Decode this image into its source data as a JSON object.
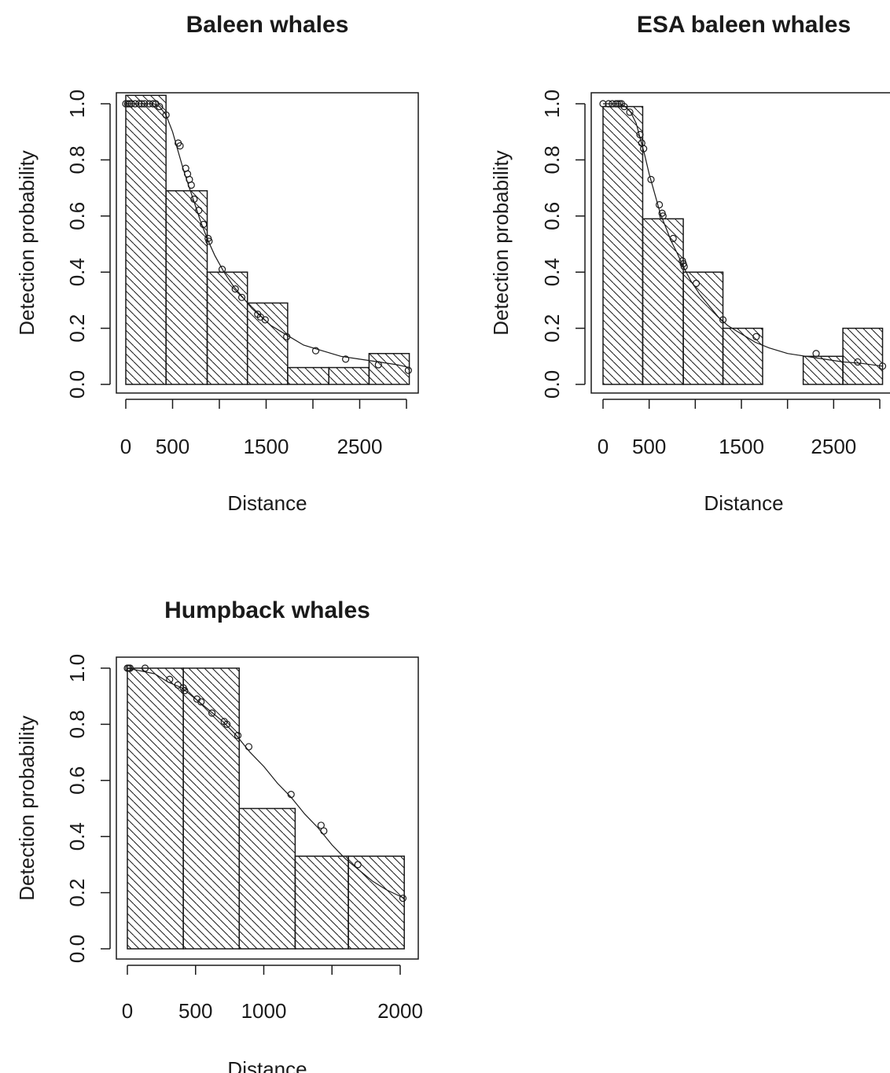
{
  "chart_data": [
    {
      "type": "bar",
      "title": "Baleen whales",
      "xlabel": "Distance",
      "ylabel": "Detection probability",
      "xlim": [
        0,
        3000
      ],
      "ylim": [
        0,
        1.0
      ],
      "x_ticks": [
        0,
        500,
        1000,
        1500,
        2000,
        2500,
        3000
      ],
      "x_tick_labels": [
        "0",
        "500",
        "",
        "1500",
        "",
        "2500",
        ""
      ],
      "y_ticks": [
        0.0,
        0.2,
        0.4,
        0.6,
        0.8,
        1.0
      ],
      "y_tick_labels": [
        "0.0",
        "0.2",
        "0.4",
        "0.6",
        "0.8",
        "1.0"
      ],
      "histogram": [
        {
          "x0": 0,
          "x1": 430,
          "value": 1.03
        },
        {
          "x0": 430,
          "x1": 870,
          "value": 0.69
        },
        {
          "x0": 870,
          "x1": 1300,
          "value": 0.4
        },
        {
          "x0": 1300,
          "x1": 1730,
          "value": 0.29
        },
        {
          "x0": 1730,
          "x1": 2170,
          "value": 0.06
        },
        {
          "x0": 2170,
          "x1": 2600,
          "value": 0.06
        },
        {
          "x0": 2600,
          "x1": 3030,
          "value": 0.11
        }
      ],
      "fitted_curve": {
        "x": [
          0,
          60,
          120,
          180,
          240,
          300,
          360,
          430,
          500,
          560,
          620,
          680,
          740,
          800,
          870,
          950,
          1050,
          1150,
          1250,
          1350,
          1450,
          1550,
          1650,
          1750,
          1900,
          2100,
          2300,
          2500,
          2700,
          2900,
          3030
        ],
        "y": [
          1.0,
          1.0,
          1.0,
          1.0,
          1.0,
          1.0,
          0.99,
          0.96,
          0.9,
          0.83,
          0.76,
          0.7,
          0.64,
          0.58,
          0.52,
          0.46,
          0.4,
          0.35,
          0.31,
          0.27,
          0.24,
          0.21,
          0.19,
          0.17,
          0.14,
          0.12,
          0.1,
          0.09,
          0.08,
          0.07,
          0.06
        ]
      },
      "points": {
        "x": [
          0,
          20,
          40,
          60,
          100,
          140,
          170,
          200,
          250,
          290,
          320,
          360,
          430,
          560,
          580,
          640,
          660,
          680,
          700,
          730,
          780,
          830,
          880,
          890,
          1030,
          1170,
          1240,
          1410,
          1440,
          1490,
          1720,
          2030,
          2350,
          2700,
          3020
        ],
        "y": [
          1.0,
          1.0,
          1.0,
          1.0,
          1.0,
          1.0,
          1.0,
          1.0,
          1.0,
          1.0,
          1.0,
          0.99,
          0.96,
          0.86,
          0.85,
          0.77,
          0.75,
          0.73,
          0.71,
          0.66,
          0.62,
          0.57,
          0.52,
          0.51,
          0.41,
          0.34,
          0.31,
          0.25,
          0.24,
          0.23,
          0.17,
          0.12,
          0.09,
          0.07,
          0.05
        ]
      }
    },
    {
      "type": "bar",
      "title": "ESA baleen whales",
      "xlabel": "Distance",
      "ylabel": "Detection probability",
      "xlim": [
        0,
        3000
      ],
      "ylim": [
        0,
        1.0
      ],
      "x_ticks": [
        0,
        500,
        1000,
        1500,
        2000,
        2500,
        3000
      ],
      "x_tick_labels": [
        "0",
        "500",
        "",
        "1500",
        "",
        "2500",
        ""
      ],
      "y_ticks": [
        0.0,
        0.2,
        0.4,
        0.6,
        0.8,
        1.0
      ],
      "y_tick_labels": [
        "0.0",
        "0.2",
        "0.4",
        "0.6",
        "0.8",
        "1.0"
      ],
      "histogram": [
        {
          "x0": 0,
          "x1": 430,
          "value": 0.99
        },
        {
          "x0": 430,
          "x1": 870,
          "value": 0.59
        },
        {
          "x0": 870,
          "x1": 1300,
          "value": 0.4
        },
        {
          "x0": 1300,
          "x1": 1730,
          "value": 0.2
        },
        {
          "x0": 1730,
          "x1": 2170,
          "value": 0.0
        },
        {
          "x0": 2170,
          "x1": 2600,
          "value": 0.1
        },
        {
          "x0": 2600,
          "x1": 3030,
          "value": 0.2
        }
      ],
      "fitted_curve": {
        "x": [
          0,
          60,
          120,
          180,
          240,
          300,
          360,
          400,
          450,
          500,
          560,
          620,
          680,
          740,
          800,
          870,
          950,
          1050,
          1150,
          1250,
          1350,
          1450,
          1550,
          1650,
          1800,
          2000,
          2200,
          2400,
          2600,
          2800,
          3030
        ],
        "y": [
          1.0,
          1.0,
          1.0,
          1.0,
          0.99,
          0.97,
          0.93,
          0.88,
          0.82,
          0.75,
          0.68,
          0.61,
          0.56,
          0.51,
          0.47,
          0.42,
          0.37,
          0.32,
          0.28,
          0.24,
          0.21,
          0.19,
          0.17,
          0.15,
          0.13,
          0.11,
          0.1,
          0.09,
          0.08,
          0.075,
          0.065
        ]
      },
      "points": {
        "x": [
          0,
          60,
          100,
          140,
          160,
          180,
          200,
          230,
          290,
          400,
          420,
          440,
          520,
          610,
          640,
          650,
          760,
          860,
          870,
          880,
          1010,
          1300,
          1660,
          2310,
          2760,
          3030
        ],
        "y": [
          1.0,
          1.0,
          1.0,
          1.0,
          1.0,
          1.0,
          1.0,
          0.99,
          0.97,
          0.89,
          0.86,
          0.84,
          0.73,
          0.64,
          0.61,
          0.6,
          0.52,
          0.44,
          0.43,
          0.42,
          0.36,
          0.23,
          0.17,
          0.11,
          0.08,
          0.065
        ]
      }
    },
    {
      "type": "bar",
      "title": "Humpback whales",
      "xlabel": "Distance",
      "ylabel": "Detection probability",
      "xlim": [
        0,
        2000
      ],
      "ylim": [
        0,
        1.0
      ],
      "x_ticks": [
        0,
        500,
        1000,
        1500,
        2000
      ],
      "x_tick_labels": [
        "0",
        "500",
        "1000",
        "",
        "2000"
      ],
      "y_ticks": [
        0.0,
        0.2,
        0.4,
        0.6,
        0.8,
        1.0
      ],
      "y_tick_labels": [
        "0.0",
        "0.2",
        "0.4",
        "0.6",
        "0.8",
        "1.0"
      ],
      "histogram": [
        {
          "x0": 0,
          "x1": 410,
          "value": 1.0
        },
        {
          "x0": 410,
          "x1": 820,
          "value": 1.0
        },
        {
          "x0": 820,
          "x1": 1230,
          "value": 0.5
        },
        {
          "x0": 1230,
          "x1": 1620,
          "value": 0.33
        },
        {
          "x0": 1620,
          "x1": 2030,
          "value": 0.33
        }
      ],
      "fitted_curve": {
        "x": [
          0,
          100,
          200,
          300,
          400,
          500,
          600,
          700,
          800,
          900,
          1000,
          1100,
          1200,
          1300,
          1400,
          1500,
          1600,
          1700,
          1800,
          1900,
          2030
        ],
        "y": [
          1.0,
          0.99,
          0.98,
          0.95,
          0.93,
          0.89,
          0.85,
          0.81,
          0.76,
          0.7,
          0.65,
          0.59,
          0.54,
          0.48,
          0.43,
          0.37,
          0.32,
          0.28,
          0.24,
          0.21,
          0.18
        ]
      },
      "points": {
        "x": [
          0,
          10,
          20,
          130,
          310,
          370,
          410,
          420,
          510,
          540,
          620,
          710,
          730,
          810,
          890,
          1200,
          1420,
          1440,
          1690,
          2020
        ],
        "y": [
          1.0,
          1.0,
          1.0,
          1.0,
          0.96,
          0.94,
          0.93,
          0.92,
          0.89,
          0.88,
          0.84,
          0.81,
          0.8,
          0.76,
          0.72,
          0.55,
          0.44,
          0.42,
          0.3,
          0.18
        ]
      }
    }
  ]
}
